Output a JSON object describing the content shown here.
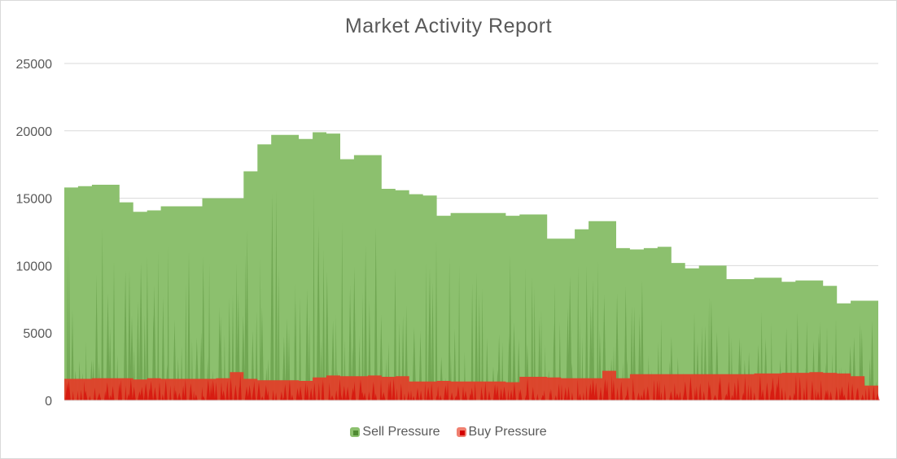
{
  "chart_data": {
    "type": "area",
    "title": "Market Activity Report",
    "xlabel": "",
    "ylabel": "",
    "ylim": [
      0,
      25000
    ],
    "yticks": [
      0,
      5000,
      10000,
      15000,
      20000,
      25000
    ],
    "grid": true,
    "legend_position": "bottom",
    "series": [
      {
        "name": "Sell Pressure",
        "color": "#8cc06e",
        "dark_color": "#4f8a32",
        "values": [
          15800,
          15900,
          16000,
          16000,
          14700,
          14000,
          14100,
          14400,
          14400,
          14400,
          15000,
          15000,
          15000,
          17000,
          19000,
          19700,
          19700,
          19400,
          19900,
          19800,
          17900,
          18200,
          18200,
          15700,
          15600,
          15300,
          15200,
          13700,
          13900,
          13900,
          13900,
          13900,
          13700,
          13800,
          13800,
          12000,
          12000,
          12700,
          13300,
          13300,
          11300,
          11200,
          11300,
          11400,
          10200,
          9800,
          10000,
          10000,
          9000,
          9000,
          9100,
          9100,
          8800,
          8900,
          8900,
          8500,
          7200,
          7400,
          7400
        ]
      },
      {
        "name": "Buy Pressure",
        "color": "#e0402a",
        "dark_color": "#d40000",
        "values": [
          1600,
          1600,
          1650,
          1650,
          1650,
          1550,
          1650,
          1600,
          1600,
          1600,
          1600,
          1650,
          2100,
          1600,
          1500,
          1500,
          1500,
          1450,
          1700,
          1850,
          1800,
          1800,
          1850,
          1750,
          1800,
          1400,
          1400,
          1450,
          1400,
          1400,
          1400,
          1400,
          1350,
          1750,
          1750,
          1700,
          1650,
          1650,
          1650,
          2200,
          1650,
          1950,
          1950,
          1950,
          1950,
          1950,
          1950,
          1950,
          1950,
          1950,
          2000,
          2000,
          2050,
          2050,
          2100,
          2050,
          2000,
          1800,
          1100
        ]
      }
    ]
  }
}
